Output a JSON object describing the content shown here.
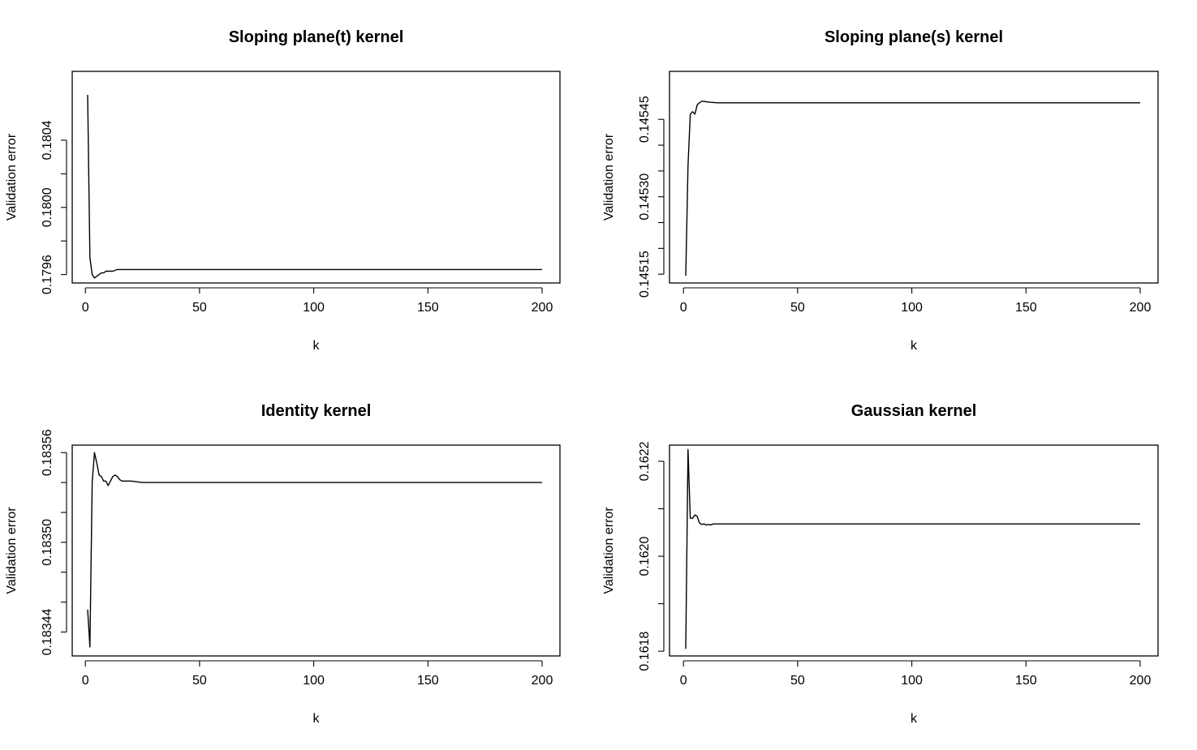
{
  "chart_data": [
    {
      "type": "line",
      "title": "Sloping plane(t) kernel",
      "xlabel": "k",
      "ylabel": "Validation error",
      "xlim": [
        1,
        200
      ],
      "ylim": [
        0.17955,
        0.18081
      ],
      "xticks": [
        0,
        50,
        100,
        150,
        200
      ],
      "xtick_labels": [
        "0",
        "50",
        "100",
        "150",
        "200"
      ],
      "yticks": [
        0.1796,
        0.1798,
        0.18,
        0.1802,
        0.1804
      ],
      "ytick_labels": [
        "0.1796",
        "",
        "0.1800",
        "",
        "0.1804"
      ],
      "grid": false,
      "series": [
        {
          "x": [
            1,
            2,
            3,
            4,
            5,
            6,
            7,
            8,
            9,
            10,
            12,
            14,
            16,
            18,
            20,
            25,
            30,
            50,
            100,
            150,
            200
          ],
          "values": [
            0.18067,
            0.1797,
            0.1796,
            0.17958,
            0.17959,
            0.1796,
            0.17961,
            0.17961,
            0.17962,
            0.17962,
            0.17962,
            0.17963,
            0.17963,
            0.17963,
            0.17963,
            0.17963,
            0.17963,
            0.17963,
            0.17963,
            0.17963,
            0.17963
          ]
        }
      ]
    },
    {
      "type": "line",
      "title": "Sloping plane(s) kernel",
      "xlabel": "k",
      "ylabel": "Validation error",
      "xlim": [
        1,
        200
      ],
      "ylim": [
        0.145133,
        0.145543
      ],
      "xticks": [
        0,
        50,
        100,
        150,
        200
      ],
      "xtick_labels": [
        "0",
        "50",
        "100",
        "150",
        "200"
      ],
      "yticks": [
        0.14515,
        0.1452,
        0.14525,
        0.1453,
        0.14535,
        0.1454,
        0.14545
      ],
      "ytick_labels": [
        "0.14515",
        "",
        "",
        "0.14530",
        "",
        "",
        "0.14545"
      ],
      "grid": false,
      "series": [
        {
          "x": [
            1,
            2,
            3,
            4,
            5,
            6,
            7,
            8,
            9,
            10,
            12,
            15,
            20,
            30,
            50,
            100,
            150,
            200
          ],
          "values": [
            0.145147,
            0.14536,
            0.14546,
            0.145465,
            0.14546,
            0.145478,
            0.145482,
            0.145485,
            0.145485,
            0.145484,
            0.145483,
            0.145482,
            0.145482,
            0.145482,
            0.145482,
            0.145482,
            0.145482,
            0.145482
          ]
        }
      ]
    },
    {
      "type": "line",
      "title": "Identity kernel",
      "xlabel": "k",
      "ylabel": "Validation error",
      "xlim": [
        1,
        200
      ],
      "ylim": [
        0.183424,
        0.183565
      ],
      "xticks": [
        0,
        50,
        100,
        150,
        200
      ],
      "xtick_labels": [
        "0",
        "50",
        "100",
        "150",
        "200"
      ],
      "yticks": [
        0.18344,
        0.18346,
        0.18348,
        0.1835,
        0.18352,
        0.18354,
        0.18356
      ],
      "ytick_labels": [
        "0.18344",
        "",
        "",
        "0.18350",
        "",
        "",
        "0.18356"
      ],
      "grid": false,
      "series": [
        {
          "x": [
            1,
            2,
            3,
            4,
            5,
            6,
            7,
            8,
            9,
            10,
            11,
            12,
            13,
            14,
            15,
            16,
            18,
            20,
            25,
            30,
            50,
            100,
            150,
            200
          ],
          "values": [
            0.183455,
            0.18343,
            0.18354,
            0.18356,
            0.183553,
            0.183545,
            0.183544,
            0.183541,
            0.183541,
            0.183538,
            0.183541,
            0.183544,
            0.183545,
            0.183544,
            0.183542,
            0.183541,
            0.183541,
            0.183541,
            0.18354,
            0.18354,
            0.18354,
            0.18354,
            0.18354,
            0.18354
          ]
        }
      ]
    },
    {
      "type": "line",
      "title": "Gaussian kernel",
      "xlabel": "k",
      "ylabel": "Validation error",
      "xlim": [
        1,
        200
      ],
      "ylim": [
        0.16179,
        0.162234
      ],
      "xticks": [
        0,
        50,
        100,
        150,
        200
      ],
      "xtick_labels": [
        "0",
        "50",
        "100",
        "150",
        "200"
      ],
      "yticks": [
        0.1618,
        0.1619,
        0.162,
        0.1621,
        0.1622
      ],
      "ytick_labels": [
        "0.1618",
        "",
        "0.1620",
        "",
        "0.1622"
      ],
      "grid": false,
      "series": [
        {
          "x": [
            1,
            2,
            3,
            4,
            5,
            6,
            7,
            8,
            9,
            10,
            11,
            12,
            13,
            15,
            20,
            30,
            50,
            100,
            150,
            200
          ],
          "values": [
            0.161805,
            0.162225,
            0.16208,
            0.16208,
            0.162087,
            0.162084,
            0.16207,
            0.162067,
            0.162068,
            0.162066,
            0.162067,
            0.162066,
            0.162068,
            0.162068,
            0.162068,
            0.162068,
            0.162068,
            0.162068,
            0.162068,
            0.162068
          ]
        }
      ]
    }
  ]
}
